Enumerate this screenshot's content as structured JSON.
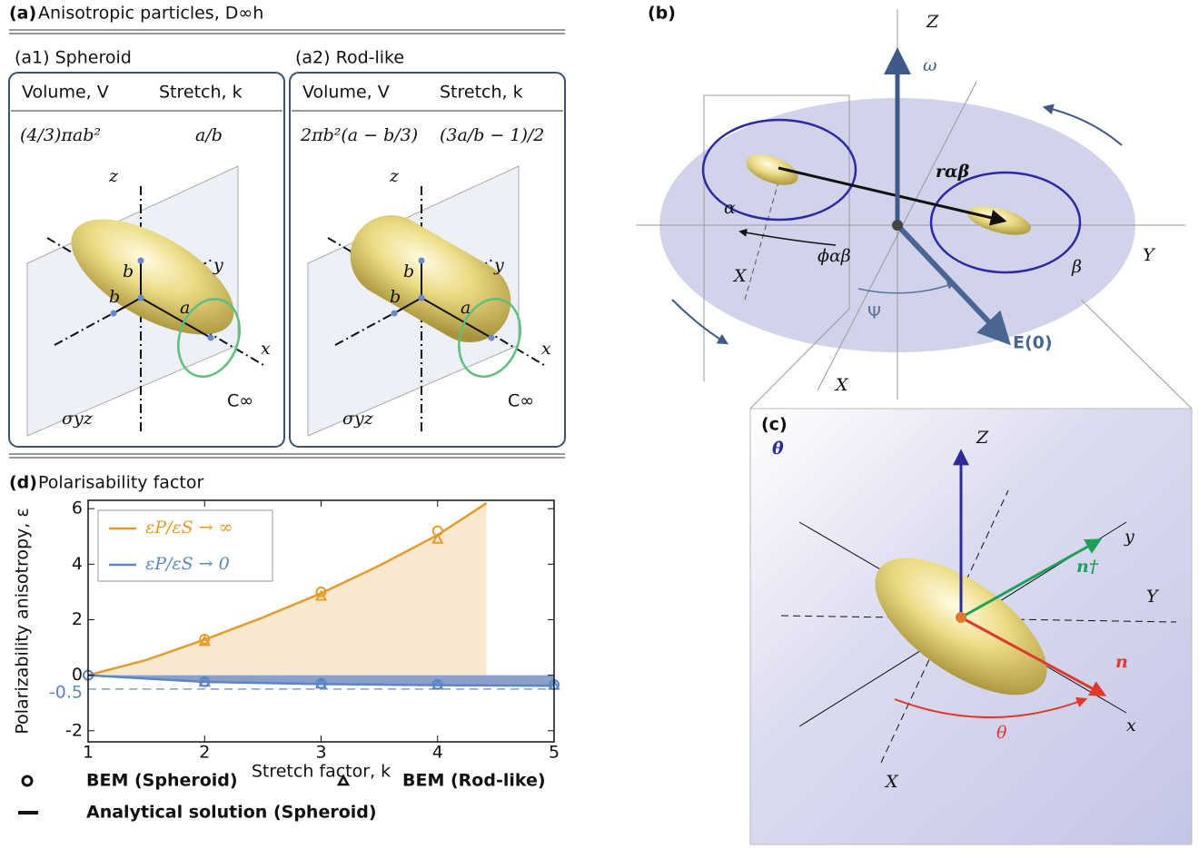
{
  "panel_a": {
    "label": "(a)",
    "title": "Anisotropic particles, D∞h",
    "particles": [
      {
        "label": "(a1) Spheroid",
        "headers": [
          "Volume, V",
          "Stretch, k"
        ],
        "formulas": [
          "(4/3)πab²",
          "a/b"
        ]
      },
      {
        "label": "(a2) Rod-like",
        "headers": [
          "Volume, V",
          "Stretch, k"
        ],
        "formulas": [
          "2πb²(a − b/3)",
          "(3a/b − 1)/2"
        ]
      }
    ],
    "axis_labels": [
      "z",
      "y",
      "x"
    ],
    "dimension_labels": [
      "b",
      "b",
      "a"
    ],
    "symmetry_labels": [
      "σyz",
      "C∞"
    ]
  },
  "panel_b": {
    "label": "(b)",
    "labels": {
      "Z": "Z",
      "omega": "ω",
      "alpha": "α",
      "r": "rαβ",
      "phi": "ϕαβ",
      "beta": "β",
      "Y": "Y",
      "X": "X",
      "psi": "Ψ",
      "E": "E(0)"
    }
  },
  "panel_c": {
    "label": "(c)",
    "labels": {
      "theta_dot": "θ̇",
      "Z": "Z",
      "y": "y",
      "n_dagger": "n†",
      "Y": "Y",
      "n": "n",
      "x": "x",
      "theta": "θ",
      "X": "X"
    }
  },
  "chart_data": {
    "type": "line",
    "label": "(d)",
    "title": "Polarisability factor",
    "xlabel": "Stretch factor, k",
    "ylabel": "Polarizability anisotropy, ε",
    "xlim": [
      1,
      5
    ],
    "ylim": [
      -2.4,
      6.3
    ],
    "xticks": [
      1,
      2,
      3,
      4,
      5
    ],
    "yticks": [
      -2,
      0,
      2,
      4,
      6
    ],
    "reference_line": -0.5,
    "series": [
      {
        "name": "εP/εS → ∞",
        "color": "#e39b2a",
        "fill": "#f7e8cf",
        "x": [
          1,
          1.5,
          2,
          2.5,
          3,
          3.5,
          4,
          4.42
        ],
        "values": [
          0,
          0.55,
          1.28,
          2.08,
          2.95,
          3.95,
          5.05,
          6.2
        ],
        "bem_spheroid": {
          "x": [
            1,
            2,
            3,
            4
          ],
          "values": [
            0,
            1.3,
            3.0,
            5.2
          ]
        },
        "bem_rodlike": {
          "x": [
            2,
            3,
            4
          ],
          "values": [
            1.22,
            2.85,
            4.9
          ]
        }
      },
      {
        "name": "εP/εS → 0",
        "color": "#5b86c5",
        "fill": "#8c9fc8",
        "x": [
          1,
          2,
          3,
          4,
          5
        ],
        "values": [
          0,
          -0.24,
          -0.32,
          -0.36,
          -0.38
        ],
        "bem_spheroid": {
          "x": [
            1,
            2,
            3,
            4,
            5
          ],
          "values": [
            0,
            -0.23,
            -0.3,
            -0.33,
            -0.34
          ]
        },
        "bem_rodlike": {
          "x": [
            2,
            3,
            4,
            5
          ],
          "values": [
            -0.25,
            -0.32,
            -0.35,
            -0.36
          ]
        }
      }
    ],
    "marker_legend": [
      "BEM (Spheroid)",
      "BEM (Rod-like)"
    ],
    "line_legend": "Analytical solution (Spheroid)"
  }
}
